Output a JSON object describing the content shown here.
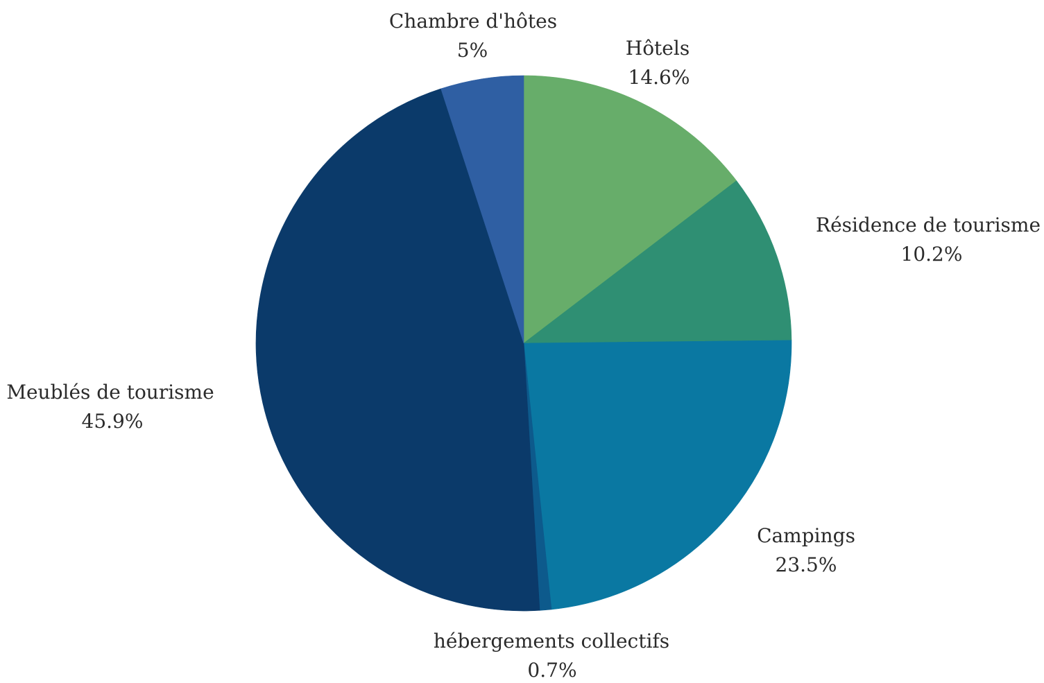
{
  "chart_data": {
    "type": "pie",
    "start_angle_deg": 0,
    "direction": "clockwise",
    "slices": [
      {
        "label": "Hôtels",
        "value": 14.6,
        "value_text": "14.6%",
        "color": "#67ad6a"
      },
      {
        "label": "Résidence de tourisme",
        "value": 10.2,
        "value_text": "10.2%",
        "color": "#2f8f73"
      },
      {
        "label": "Campings",
        "value": 23.5,
        "value_text": "23.5%",
        "color": "#0a78a2"
      },
      {
        "label": "hébergements collectifs",
        "value": 0.7,
        "value_text": "0.7%",
        "color": "#0d5a8c"
      },
      {
        "label": "Meublés de tourisme",
        "value": 45.9,
        "value_text": "45.9%",
        "color": "#0b3a6a"
      },
      {
        "label": "Chambre d'hôtes",
        "value": 5,
        "value_text": "5%",
        "color": "#2f5fa3"
      }
    ]
  }
}
